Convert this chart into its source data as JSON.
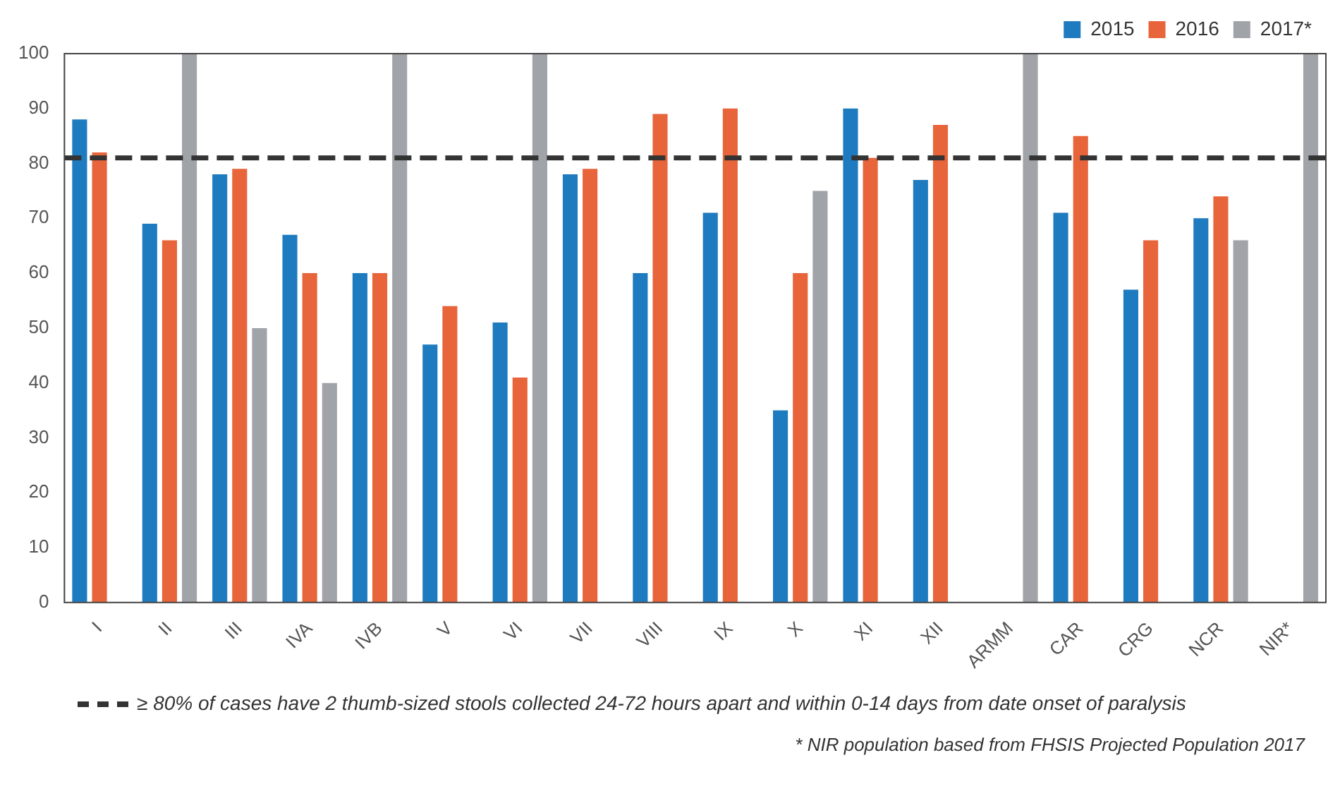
{
  "chart_data": {
    "type": "bar",
    "categories": [
      "I",
      "II",
      "III",
      "IVA",
      "IVB",
      "V",
      "VI",
      "VII",
      "VIII",
      "IX",
      "X",
      "XI",
      "XII",
      "ARMM",
      "CAR",
      "CRG",
      "NCR",
      "NIR*"
    ],
    "series": [
      {
        "name": "2015",
        "color": "#1f7bbf",
        "values": [
          88,
          69,
          78,
          67,
          60,
          47,
          51,
          78,
          60,
          71,
          35,
          90,
          77,
          null,
          71,
          57,
          70,
          null
        ]
      },
      {
        "name": "2016",
        "color": "#e8643a",
        "values": [
          82,
          66,
          79,
          60,
          60,
          54,
          41,
          79,
          89,
          90,
          60,
          81,
          87,
          null,
          85,
          66,
          74,
          null
        ]
      },
      {
        "name": "2017*",
        "color": "#a0a3a8",
        "values": [
          null,
          100,
          50,
          40,
          100,
          null,
          100,
          null,
          null,
          null,
          75,
          null,
          null,
          100,
          null,
          null,
          66,
          100
        ]
      }
    ],
    "ylim": [
      0,
      100
    ],
    "yticks": [
      0,
      10,
      20,
      30,
      40,
      50,
      60,
      70,
      80,
      90,
      100
    ],
    "grid": false,
    "legend": "top right",
    "ref_lines": [
      {
        "axis": "y",
        "value": 81,
        "color": "#333333",
        "line_style": "dashed"
      }
    ],
    "annotations": [
      "≥ 80% of cases have 2 thumb-sized  stools collected 24-72 hours apart and within 0-14 days from date onset of paralysis",
      "* NIR population based from FHSIS  Projected Population 2017"
    ]
  }
}
